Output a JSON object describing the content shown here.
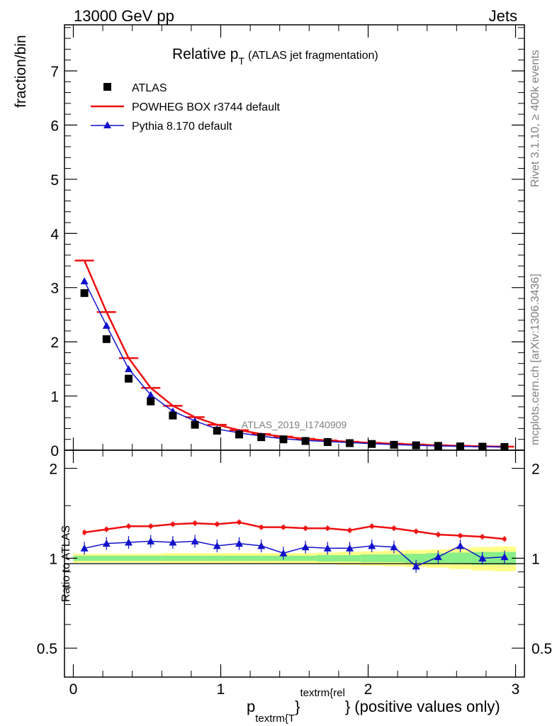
{
  "header": {
    "left": "13000 GeV pp",
    "right": "Jets"
  },
  "side_labels": {
    "rivet": "Rivet 3.1.10, ≥ 400k events",
    "mcplots": "mcplots.cern.ch [arXiv:1306.3436]"
  },
  "chart_data": [
    {
      "type": "scatter",
      "panel": "main",
      "title_main": "Relative p",
      "title_sub": "T",
      "title_rest": "(ATLAS jet fragmentation)",
      "ylabel": "fraction/bin",
      "watermark": "ATLAS_2019_I1740909",
      "xlim": [
        -0.06,
        3.06
      ],
      "ylim": [
        0,
        7.85
      ],
      "x_ticks": [
        0,
        1,
        2,
        3
      ],
      "y_ticks": [
        0,
        1,
        2,
        3,
        4,
        5,
        6,
        7
      ],
      "y_tick_labels": [
        "0",
        "1",
        "2",
        "3",
        "4",
        "5",
        "6",
        "7"
      ],
      "legend_position": "top-left",
      "x": [
        0.075,
        0.225,
        0.375,
        0.525,
        0.675,
        0.825,
        0.975,
        1.125,
        1.275,
        1.425,
        1.575,
        1.725,
        1.875,
        2.025,
        2.175,
        2.325,
        2.475,
        2.625,
        2.775,
        2.925
      ],
      "series": [
        {
          "name": "ATLAS",
          "style": "data",
          "color": "#000000",
          "values": [
            2.9,
            2.05,
            1.32,
            0.9,
            0.64,
            0.47,
            0.36,
            0.29,
            0.24,
            0.2,
            0.17,
            0.15,
            0.13,
            0.115,
            0.1,
            0.09,
            0.08,
            0.07,
            0.065,
            0.06
          ]
        },
        {
          "name": "POWHEG BOX r3744 default",
          "style": "line",
          "color": "#ee1111",
          "values": [
            3.5,
            2.55,
            1.7,
            1.15,
            0.82,
            0.61,
            0.47,
            0.37,
            0.3,
            0.25,
            0.21,
            0.18,
            0.155,
            0.135,
            0.12,
            0.105,
            0.09,
            0.08,
            0.07,
            0.065
          ]
        },
        {
          "name": "Pythia 8.170 default",
          "style": "line-triangle",
          "color": "#1111cc",
          "values": [
            3.12,
            2.3,
            1.5,
            1.02,
            0.72,
            0.54,
            0.39,
            0.32,
            0.26,
            0.21,
            0.18,
            0.16,
            0.14,
            0.12,
            0.105,
            0.09,
            0.08,
            0.07,
            0.065,
            0.06
          ]
        }
      ]
    },
    {
      "type": "scatter",
      "panel": "ratio",
      "ylabel": "Ratio to ATLAS",
      "xlabel_main": "p",
      "xlabel_sub": "textrm{T",
      "xlabel_mid": "}",
      "xlabel_sup": "textrm{rel",
      "xlabel_tail": "} (positive values only)",
      "xlim": [
        -0.06,
        3.06
      ],
      "ylim": [
        0.4,
        2.3
      ],
      "y_scale": "log",
      "x_ticks": [
        0,
        1,
        2,
        3
      ],
      "x_tick_labels": [
        "0",
        "1",
        "2",
        "3"
      ],
      "y_ticks": [
        0.5,
        1,
        2
      ],
      "y_tick_labels": [
        "0.5",
        "1",
        "2"
      ],
      "x": [
        0.075,
        0.225,
        0.375,
        0.525,
        0.675,
        0.825,
        0.975,
        1.125,
        1.275,
        1.425,
        1.575,
        1.725,
        1.875,
        2.025,
        2.175,
        2.325,
        2.475,
        2.625,
        2.775,
        2.925
      ],
      "bands": {
        "outer": [
          0.035,
          0.035,
          0.035,
          0.035,
          0.04,
          0.04,
          0.04,
          0.04,
          0.04,
          0.04,
          0.04,
          0.045,
          0.05,
          0.055,
          0.06,
          0.065,
          0.07,
          0.08,
          0.09,
          0.095
        ],
        "inner": [
          0.02,
          0.02,
          0.02,
          0.02,
          0.02,
          0.02,
          0.02,
          0.02,
          0.02,
          0.02,
          0.02,
          0.025,
          0.025,
          0.03,
          0.03,
          0.035,
          0.04,
          0.045,
          0.05,
          0.05
        ],
        "outer_color": "#ffff88",
        "inner_color": "#88ee88"
      },
      "series": [
        {
          "name": "POWHEG BOX r3744 default",
          "color": "#ee1111",
          "values": [
            1.22,
            1.25,
            1.28,
            1.28,
            1.3,
            1.31,
            1.3,
            1.32,
            1.27,
            1.27,
            1.26,
            1.26,
            1.24,
            1.28,
            1.26,
            1.23,
            1.2,
            1.19,
            1.18,
            1.16
          ]
        },
        {
          "name": "Pythia 8.170 default",
          "color": "#1111cc",
          "values": [
            1.08,
            1.12,
            1.13,
            1.14,
            1.13,
            1.14,
            1.1,
            1.12,
            1.1,
            1.04,
            1.09,
            1.08,
            1.08,
            1.1,
            1.09,
            0.94,
            1.01,
            1.1,
            1.0,
            1.01
          ]
        }
      ]
    }
  ]
}
